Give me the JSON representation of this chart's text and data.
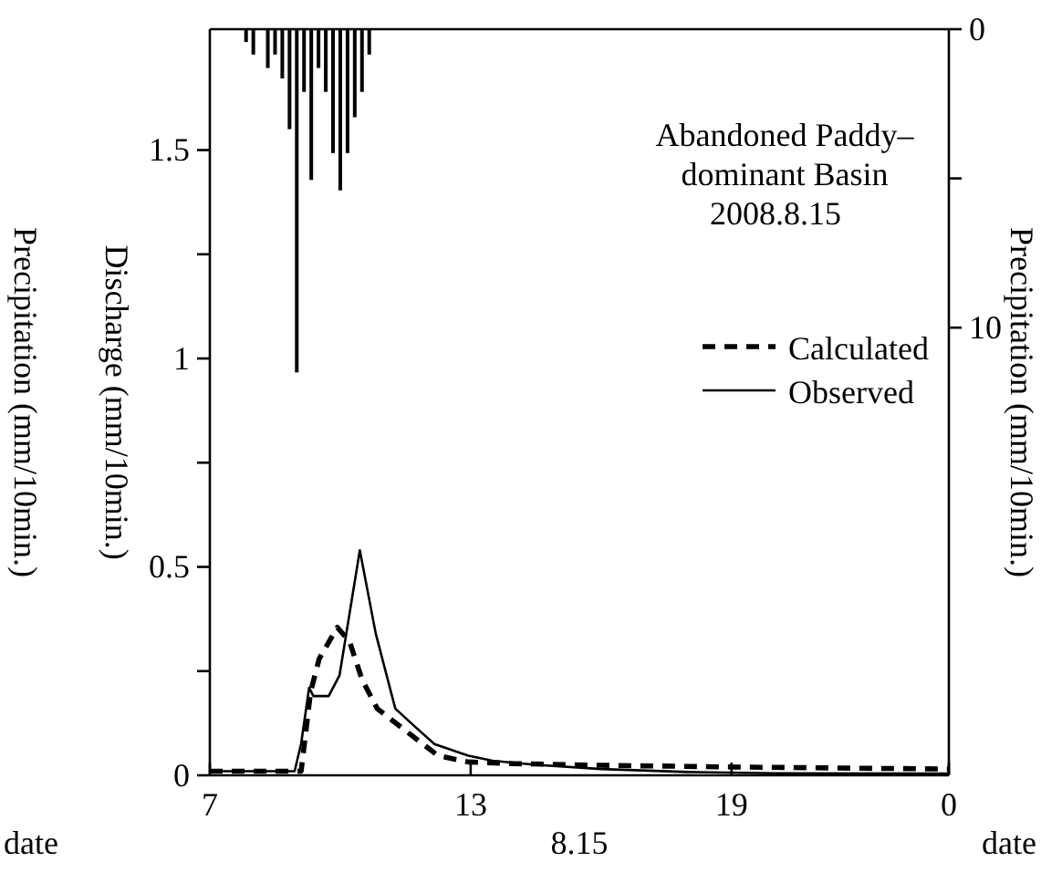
{
  "chart_data": {
    "type": "line",
    "title": "Abandoned Paddy–dominant Basin",
    "subtitle": "2008.8.15",
    "xlabel": "date",
    "ylabel": "Discharge (mm/10min.)",
    "y2label": "Precipitation (mm/10min.)",
    "annotations": [
      "8.15",
      "date",
      "Precipitation (mm/10min.)"
    ],
    "xlim": [
      "2008-08-15T07:00",
      "2008-08-16T00:00"
    ],
    "xticks": [
      {
        "value": "2008-08-15T07:00",
        "label": "7"
      },
      {
        "value": "2008-08-15T13:00",
        "label": "13"
      },
      {
        "value": "2008-08-15T19:00",
        "label": "19"
      },
      {
        "value": "2008-08-16T00:00",
        "label": "0"
      }
    ],
    "ylim": [
      0,
      1.79
    ],
    "yticks": [
      0,
      {
        "value": 0.25,
        "label": null
      },
      0.5,
      {
        "value": 0.75,
        "label": null
      },
      1,
      {
        "value": 1.25,
        "label": null
      },
      1.5
    ],
    "y2lim": [
      25,
      0
    ],
    "y2ticks": [
      0,
      {
        "value": 5,
        "label": null
      },
      10
    ],
    "legend": "top right",
    "marker": "none",
    "grid": false,
    "series": [
      {
        "type": "bar",
        "axis": "y2",
        "color": "#000000",
        "x": [
          "2008-08-15T07:50",
          "2008-08-15T08:00",
          "2008-08-15T08:10",
          "2008-08-15T08:20",
          "2008-08-15T08:30",
          "2008-08-15T08:40",
          "2008-08-15T08:50",
          "2008-08-15T09:00",
          "2008-08-15T09:10",
          "2008-08-15T09:20",
          "2008-08-15T09:30",
          "2008-08-15T09:40",
          "2008-08-15T09:50",
          "2008-08-15T10:00",
          "2008-08-15T10:10",
          "2008-08-15T10:20",
          "2008-08-15T10:30",
          "2008-08-15T10:40"
        ],
        "values": [
          0.43,
          0.85,
          0,
          1.3,
          0.85,
          1.65,
          3.35,
          11.5,
          2.1,
          5.05,
          1.3,
          2.1,
          4.15,
          5.4,
          4.15,
          2.95,
          2.1,
          0.85
        ]
      },
      {
        "name": "Calculated",
        "line_style": "dashed",
        "color": "#000000",
        "x": [
          "2008-08-15T07:00",
          "2008-08-15T09:06",
          "2008-08-15T09:19",
          "2008-08-15T09:31",
          "2008-08-15T09:56",
          "2008-08-15T10:13",
          "2008-08-15T10:30",
          "2008-08-15T10:51",
          "2008-08-15T11:25",
          "2008-08-15T12:15",
          "2008-08-15T12:57",
          "2008-08-15T14:00",
          "2008-08-15T16:00",
          "2008-08-15T19:00",
          "2008-08-16T00:00"
        ],
        "values": [
          0.01,
          0.01,
          0.2,
          0.28,
          0.355,
          0.32,
          0.23,
          0.16,
          0.114,
          0.047,
          0.032,
          0.028,
          0.024,
          0.02,
          0.015
        ]
      },
      {
        "name": "Observed",
        "line_style": "solid",
        "color": "#000000",
        "x": [
          "2008-08-15T07:00",
          "2008-08-15T08:57",
          "2008-08-15T09:06",
          "2008-08-15T09:17",
          "2008-08-15T09:23",
          "2008-08-15T09:44",
          "2008-08-15T09:59",
          "2008-08-15T10:27",
          "2008-08-15T10:49",
          "2008-08-15T11:16",
          "2008-08-15T11:41",
          "2008-08-15T12:10",
          "2008-08-15T12:57",
          "2008-08-15T13:30",
          "2008-08-15T14:30",
          "2008-08-15T16:00",
          "2008-08-15T18:00",
          "2008-08-15T20:00",
          "2008-08-16T00:00"
        ],
        "values": [
          0.01,
          0.01,
          0.076,
          0.21,
          0.19,
          0.19,
          0.24,
          0.54,
          0.34,
          0.16,
          0.12,
          0.075,
          0.047,
          0.035,
          0.025,
          0.015,
          0.008,
          0.005,
          0.004
        ]
      }
    ]
  }
}
